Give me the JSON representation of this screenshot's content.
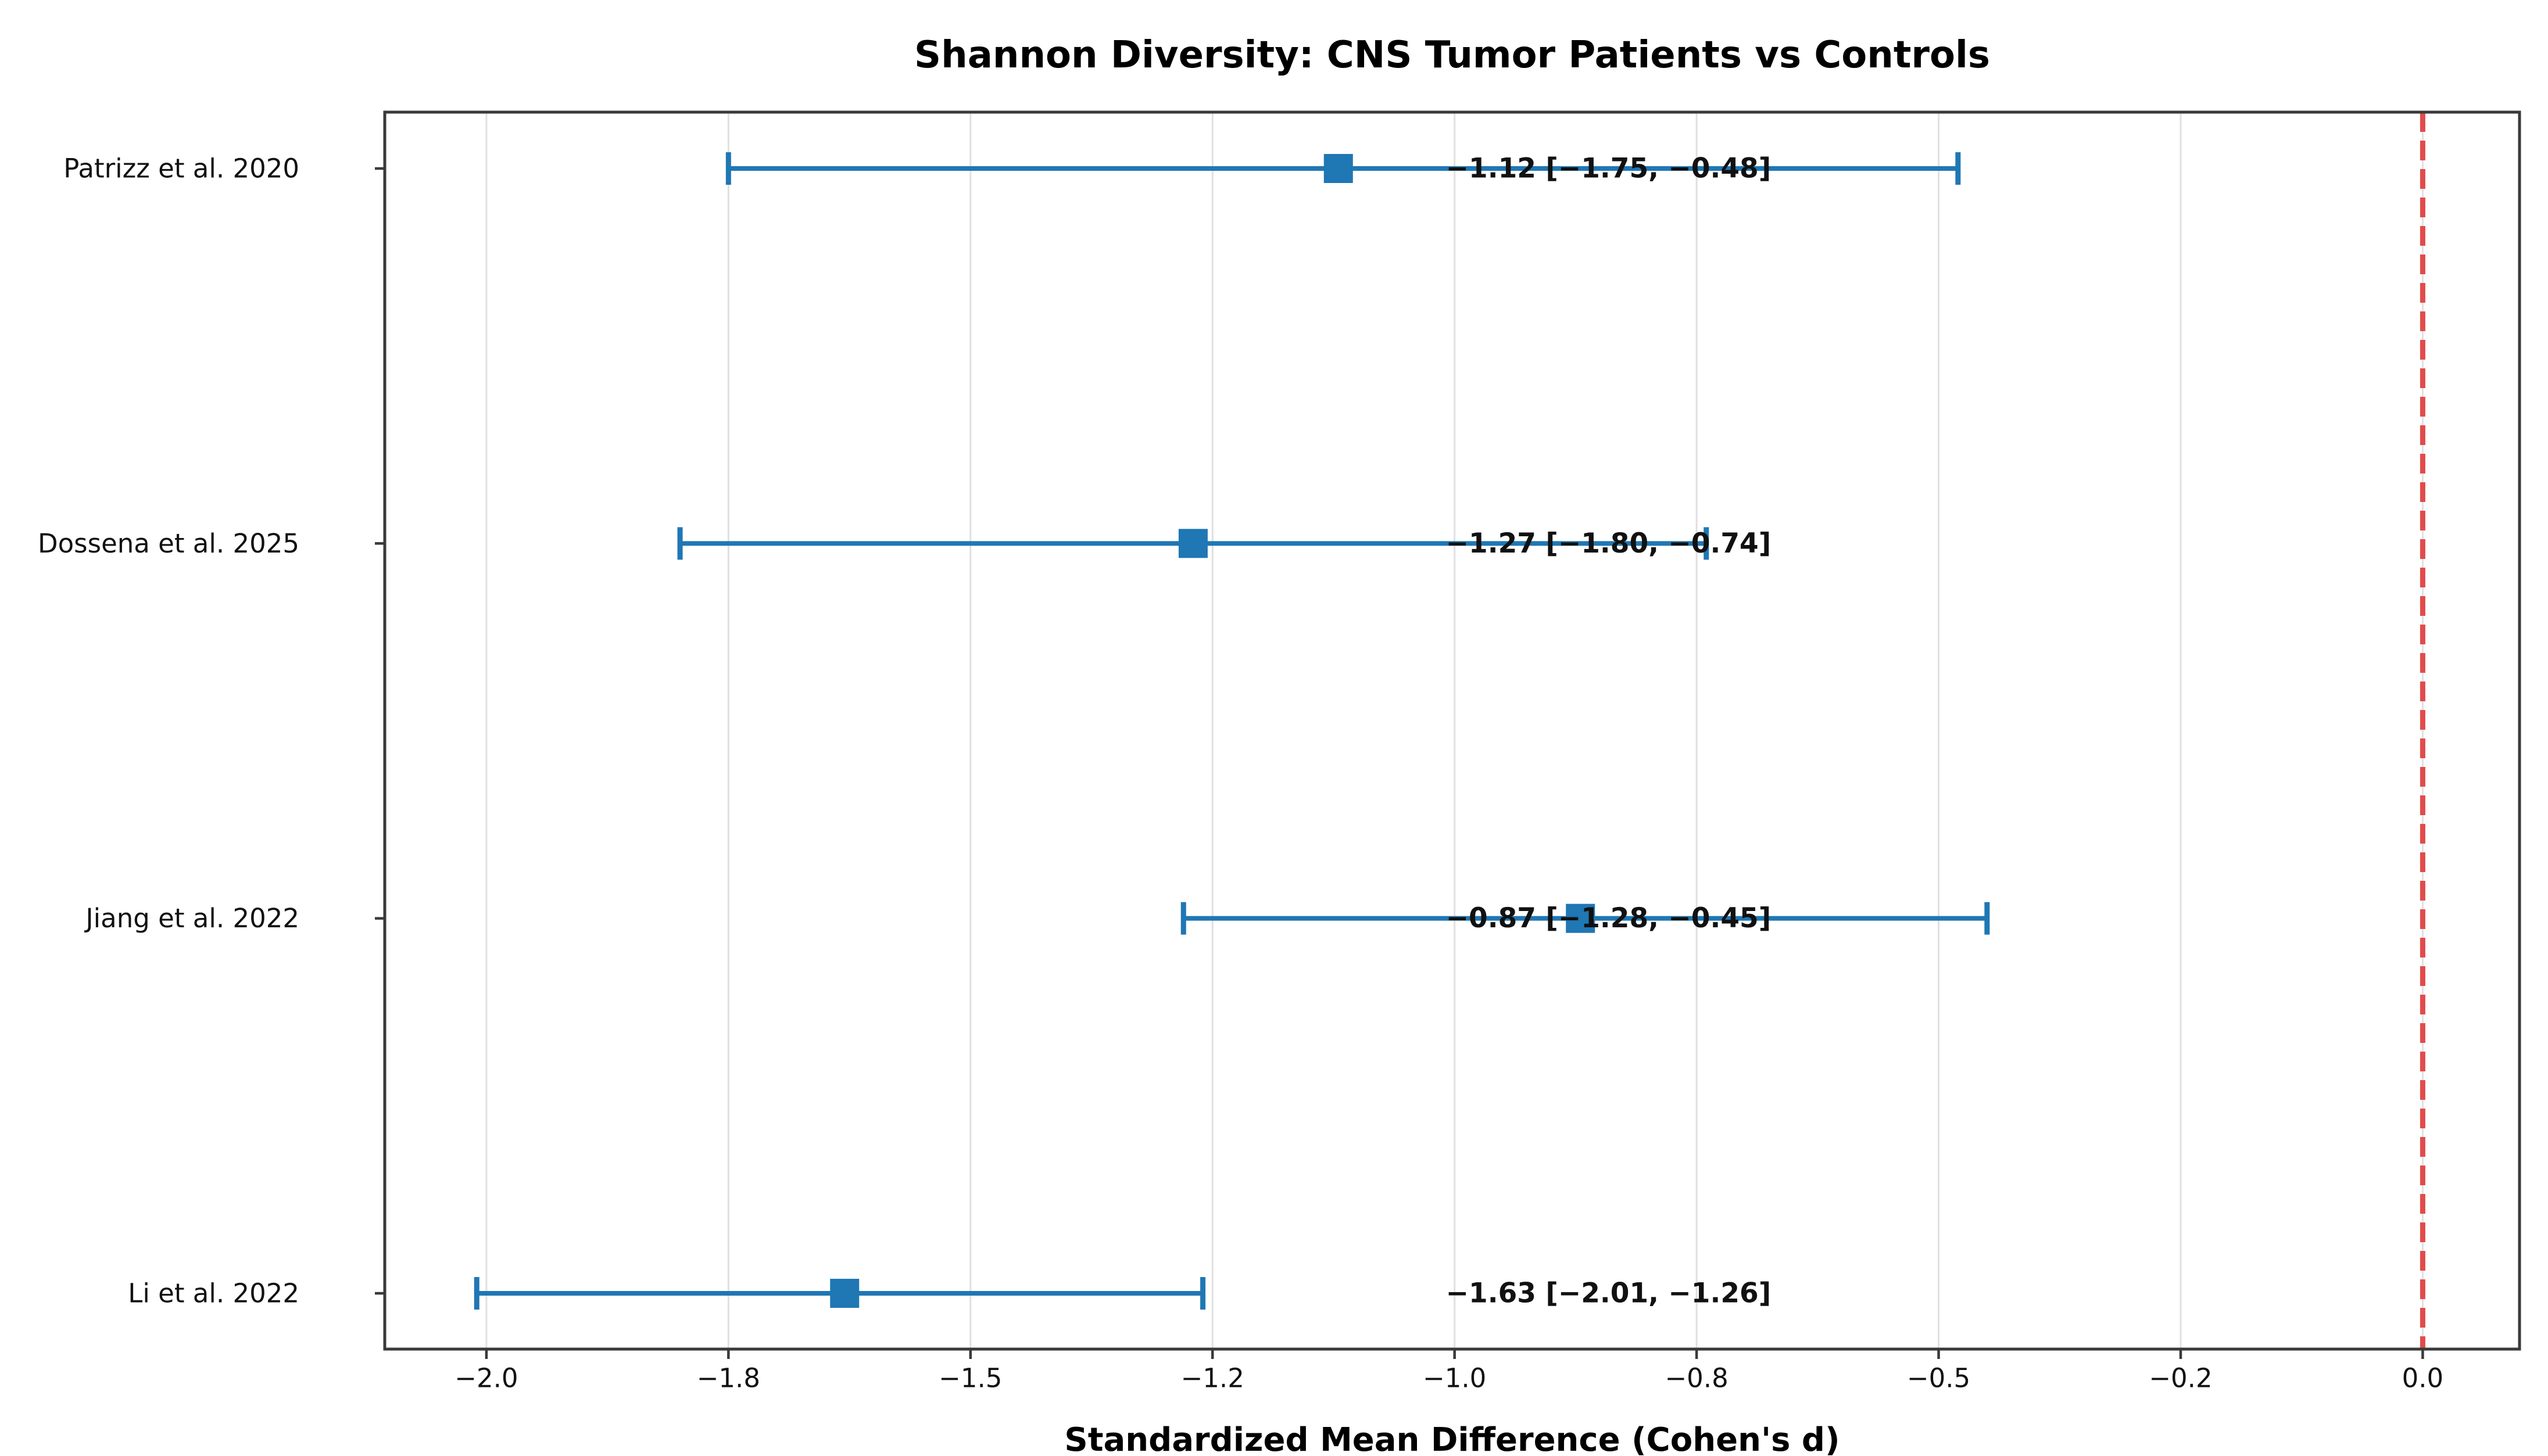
{
  "title": "Shannon Diversity: CNS Tumor Patients vs Controls",
  "chart_data": {
    "type": "scatter",
    "variant": "forest-plot-with-error-bars",
    "title": "Shannon Diversity: CNS Tumor Patients vs Controls",
    "xlabel": "Standardized Mean Difference (Cohen's d)",
    "ylabel": "",
    "xlim": [
      -2.105,
      0.1
    ],
    "grid": "vertical-gridlines-only",
    "legend": "none",
    "x_ticks": [
      {
        "value": -2.0,
        "label": "−2.0"
      },
      {
        "value": -1.75,
        "label": "−1.8"
      },
      {
        "value": -1.5,
        "label": "−1.5"
      },
      {
        "value": -1.25,
        "label": "−1.2"
      },
      {
        "value": -1.0,
        "label": "−1.0"
      },
      {
        "value": -0.75,
        "label": "−0.8"
      },
      {
        "value": -0.5,
        "label": "−0.5"
      },
      {
        "value": -0.25,
        "label": "−0.2"
      },
      {
        "value": 0.0,
        "label": "0.0"
      }
    ],
    "studies": [
      {
        "label": "Patrizz et al. 2020",
        "smd": -1.12,
        "ci_low": -1.75,
        "ci_high": -0.48,
        "annotation": "−1.12 [−1.75, −0.48]"
      },
      {
        "label": "Dossena et al. 2025",
        "smd": -1.27,
        "ci_low": -1.8,
        "ci_high": -0.74,
        "annotation": "−1.27 [−1.80, −0.74]"
      },
      {
        "label": "Jiang et al. 2022",
        "smd": -0.87,
        "ci_low": -1.28,
        "ci_high": -0.45,
        "annotation": "−0.87 [−1.28, −0.45]"
      },
      {
        "label": "Li et al. 2022",
        "smd": -1.63,
        "ci_low": -2.01,
        "ci_high": -1.26,
        "annotation": "−1.63 [−2.01, −1.26]"
      }
    ],
    "annotation_x": -1.0,
    "reference_line": {
      "x": 0.0,
      "style": "dashed",
      "color": "#e14c4c"
    },
    "marker": {
      "shape": "square",
      "color": "#1f77b4"
    },
    "colors": {
      "marker_and_ci": "#1f77b4",
      "reference_line": "#e14c4c",
      "gridline": "#e0e0e0",
      "spine": "#3a3a3a",
      "text": "#111111"
    }
  }
}
